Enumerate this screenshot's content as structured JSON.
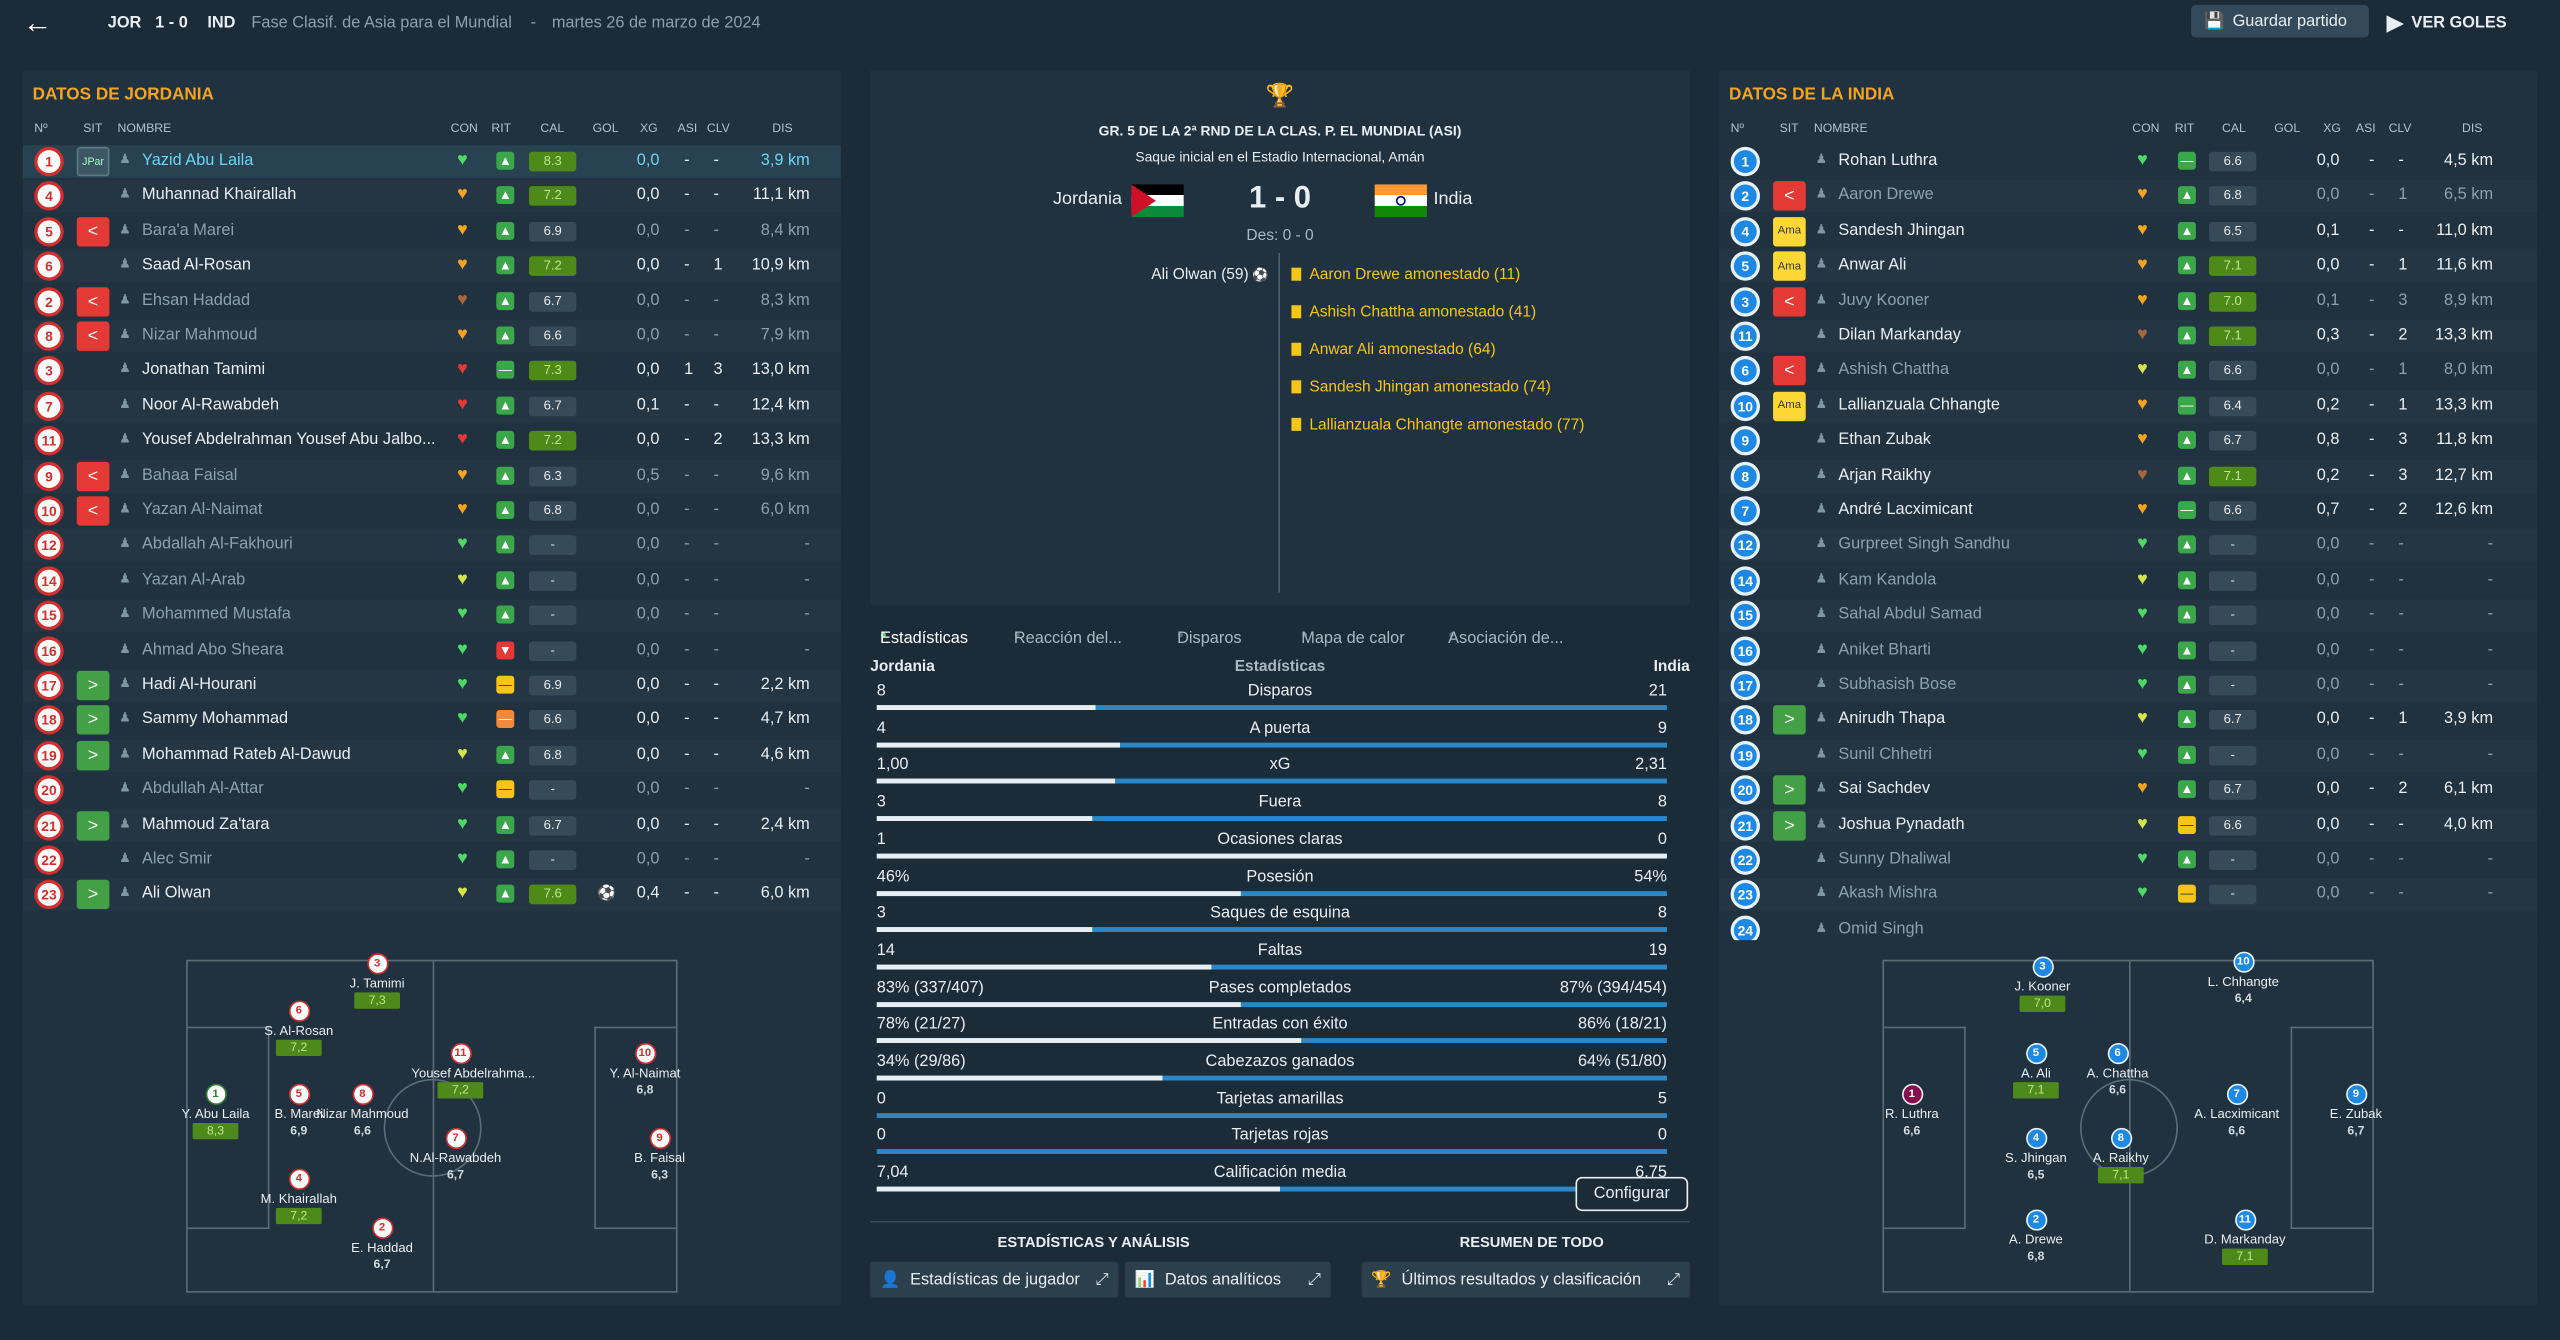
{
  "topbar": {
    "home_abbr": "JOR",
    "score": "1 - 0",
    "away_abbr": "IND",
    "competition": "Fase Clasif. de Asia para el Mundial",
    "separator": "-",
    "date": "martes 26 de marzo de 2024",
    "save_label": "Guardar partido",
    "goals_label": "VER GOLES"
  },
  "headers": {
    "no": "Nº",
    "sit": "SIT",
    "name": "NOMBRE",
    "con": "CON",
    "rit": "RIT",
    "cal": "CAL",
    "gol": "GOL",
    "xg": "XG",
    "asi": "ASI",
    "clv": "CLV",
    "dis": "DIS"
  },
  "home": {
    "title": "DATOS DE JORDANIA",
    "players": [
      {
        "num": "1",
        "sit": "JPar",
        "name": "Yazid Abu Laila",
        "cal": "8.3",
        "calg": true,
        "gol": "",
        "xg": "0,0",
        "asi": "-",
        "clv": "-",
        "dis": "3,9 km",
        "hl": true,
        "heart": "g",
        "rit": "up"
      },
      {
        "num": "4",
        "sit": "",
        "name": "Muhannad Khairallah",
        "cal": "7.2",
        "calg": true,
        "gol": "",
        "xg": "0,0",
        "asi": "-",
        "clv": "-",
        "dis": "11,1 km",
        "heart": "o",
        "rit": "up"
      },
      {
        "num": "5",
        "sit": "out",
        "name": "Bara'a Marei",
        "cal": "6.9",
        "calg": false,
        "gol": "",
        "xg": "0,0",
        "asi": "-",
        "clv": "-",
        "dis": "8,4 km",
        "dim": true,
        "heart": "o",
        "rit": "up"
      },
      {
        "num": "6",
        "sit": "",
        "name": "Saad Al-Rosan",
        "cal": "7.2",
        "calg": true,
        "gol": "",
        "xg": "0,0",
        "asi": "-",
        "clv": "1",
        "dis": "10,9 km",
        "heart": "o",
        "rit": "up"
      },
      {
        "num": "2",
        "sit": "out",
        "name": "Ehsan Haddad",
        "cal": "6.7",
        "calg": false,
        "gol": "",
        "xg": "0,0",
        "asi": "-",
        "clv": "-",
        "dis": "8,3 km",
        "dim": true,
        "heart": "b",
        "rit": "up"
      },
      {
        "num": "8",
        "sit": "out",
        "name": "Nizar Mahmoud",
        "cal": "6.6",
        "calg": false,
        "gol": "",
        "xg": "0,0",
        "asi": "-",
        "clv": "-",
        "dis": "7,9 km",
        "dim": true,
        "heart": "o",
        "rit": "up"
      },
      {
        "num": "3",
        "sit": "",
        "name": "Jonathan Tamimi",
        "cal": "7.3",
        "calg": true,
        "gol": "",
        "xg": "0,0",
        "asi": "1",
        "clv": "3",
        "dis": "13,0 km",
        "heart": "r",
        "rit": "eq"
      },
      {
        "num": "7",
        "sit": "",
        "name": "Noor Al-Rawabdeh",
        "cal": "6.7",
        "calg": false,
        "gol": "",
        "xg": "0,1",
        "asi": "-",
        "clv": "-",
        "dis": "12,4 km",
        "heart": "r",
        "rit": "up"
      },
      {
        "num": "11",
        "sit": "",
        "name": "Yousef Abdelrahman Yousef Abu Jalbo...",
        "cal": "7.2",
        "calg": true,
        "gol": "",
        "xg": "0,0",
        "asi": "-",
        "clv": "2",
        "dis": "13,3 km",
        "heart": "r",
        "rit": "up"
      },
      {
        "num": "9",
        "sit": "out",
        "name": "Bahaa Faisal",
        "cal": "6.3",
        "calg": false,
        "gol": "",
        "xg": "0,5",
        "asi": "-",
        "clv": "-",
        "dis": "9,6 km",
        "dim": true,
        "heart": "o",
        "rit": "up"
      },
      {
        "num": "10",
        "sit": "out",
        "name": "Yazan Al-Naimat",
        "cal": "6.8",
        "calg": false,
        "gol": "",
        "xg": "0,0",
        "asi": "-",
        "clv": "-",
        "dis": "6,0 km",
        "dim": true,
        "heart": "o",
        "rit": "up"
      },
      {
        "num": "12",
        "sit": "",
        "name": "Abdallah Al-Fakhouri",
        "cal": "-",
        "calg": false,
        "gol": "",
        "xg": "0,0",
        "asi": "-",
        "clv": "-",
        "dis": "-",
        "dim": true,
        "heart": "g",
        "rit": "up"
      },
      {
        "num": "14",
        "sit": "",
        "name": "Yazan Al-Arab",
        "cal": "-",
        "calg": false,
        "gol": "",
        "xg": "0,0",
        "asi": "-",
        "clv": "-",
        "dis": "-",
        "dim": true,
        "heart": "y",
        "rit": "up"
      },
      {
        "num": "15",
        "sit": "",
        "name": "Mohammed Mustafa",
        "cal": "-",
        "calg": false,
        "gol": "",
        "xg": "0,0",
        "asi": "-",
        "clv": "-",
        "dis": "-",
        "dim": true,
        "heart": "g",
        "rit": "up"
      },
      {
        "num": "16",
        "sit": "",
        "name": "Ahmad Abo Sheara",
        "cal": "-",
        "calg": false,
        "gol": "",
        "xg": "0,0",
        "asi": "-",
        "clv": "-",
        "dis": "-",
        "dim": true,
        "heart": "g",
        "rit": "down"
      },
      {
        "num": "17",
        "sit": "in",
        "name": "Hadi Al-Hourani",
        "cal": "6.9",
        "calg": false,
        "gol": "",
        "xg": "0,0",
        "asi": "-",
        "clv": "-",
        "dis": "2,2 km",
        "heart": "g",
        "rit": "eqy"
      },
      {
        "num": "18",
        "sit": "in",
        "name": "Sammy Mohammad",
        "cal": "6.6",
        "calg": false,
        "gol": "",
        "xg": "0,0",
        "asi": "-",
        "clv": "-",
        "dis": "4,7 km",
        "heart": "g",
        "rit": "eqo"
      },
      {
        "num": "19",
        "sit": "in",
        "name": "Mohammad Rateb Al-Dawud",
        "cal": "6.8",
        "calg": false,
        "gol": "",
        "xg": "0,0",
        "asi": "-",
        "clv": "-",
        "dis": "4,6 km",
        "heart": "y",
        "rit": "up"
      },
      {
        "num": "20",
        "sit": "",
        "name": "Abdullah Al-Attar",
        "cal": "-",
        "calg": false,
        "gol": "",
        "xg": "0,0",
        "asi": "-",
        "clv": "-",
        "dis": "-",
        "dim": true,
        "heart": "g",
        "rit": "eqy"
      },
      {
        "num": "21",
        "sit": "in",
        "name": "Mahmoud Za'tara",
        "cal": "6.7",
        "calg": false,
        "gol": "",
        "xg": "0,0",
        "asi": "-",
        "clv": "-",
        "dis": "2,4 km",
        "heart": "g",
        "rit": "up"
      },
      {
        "num": "22",
        "sit": "",
        "name": "Alec Smir",
        "cal": "-",
        "calg": false,
        "gol": "",
        "xg": "0,0",
        "asi": "-",
        "clv": "-",
        "dis": "-",
        "dim": true,
        "heart": "g",
        "rit": "up"
      },
      {
        "num": "23",
        "sit": "in",
        "name": "Ali Olwan",
        "cal": "7.6",
        "calg": true,
        "gol": "⚽",
        "xg": "0,4",
        "asi": "-",
        "clv": "-",
        "dis": "6,0 km",
        "heart": "y",
        "rit": "up"
      }
    ]
  },
  "away": {
    "title": "DATOS DE LA INDIA",
    "players": [
      {
        "num": "1",
        "sit": "",
        "name": "Rohan Luthra",
        "cal": "6.6",
        "calg": false,
        "xg": "0,0",
        "asi": "-",
        "clv": "-",
        "dis": "4,5 km",
        "heart": "g",
        "rit": "eq"
      },
      {
        "num": "2",
        "sit": "out",
        "name": "Aaron Drewe",
        "cal": "6.8",
        "calg": false,
        "xg": "0,0",
        "asi": "-",
        "clv": "1",
        "dis": "6,5 km",
        "dim": true,
        "heart": "o",
        "rit": "up"
      },
      {
        "num": "4",
        "sit": "Ama",
        "name": "Sandesh Jhingan",
        "cal": "6.5",
        "calg": false,
        "xg": "0,1",
        "asi": "-",
        "clv": "-",
        "dis": "11,0 km",
        "heart": "o",
        "rit": "up"
      },
      {
        "num": "5",
        "sit": "Ama",
        "name": "Anwar Ali",
        "cal": "7.1",
        "calg": true,
        "xg": "0,0",
        "asi": "-",
        "clv": "1",
        "dis": "11,6 km",
        "heart": "o",
        "rit": "up"
      },
      {
        "num": "3",
        "sit": "out",
        "name": "Juvy Kooner",
        "cal": "7.0",
        "calg": true,
        "xg": "0,1",
        "asi": "-",
        "clv": "3",
        "dis": "8,9 km",
        "dim": true,
        "heart": "o",
        "rit": "up"
      },
      {
        "num": "11",
        "sit": "",
        "name": "Dilan Markanday",
        "cal": "7.1",
        "calg": true,
        "xg": "0,3",
        "asi": "-",
        "clv": "2",
        "dis": "13,3 km",
        "heart": "b",
        "rit": "up"
      },
      {
        "num": "6",
        "sit": "out",
        "name": "Ashish Chattha",
        "cal": "6.6",
        "calg": false,
        "xg": "0,0",
        "asi": "-",
        "clv": "1",
        "dis": "8,0 km",
        "dim": true,
        "heart": "y",
        "rit": "up"
      },
      {
        "num": "10",
        "sit": "Ama",
        "name": "Lallianzuala Chhangte",
        "cal": "6.4",
        "calg": false,
        "xg": "0,2",
        "asi": "-",
        "clv": "1",
        "dis": "13,3 km",
        "heart": "o",
        "rit": "eq"
      },
      {
        "num": "9",
        "sit": "",
        "name": "Ethan Zubak",
        "cal": "6.7",
        "calg": false,
        "xg": "0,8",
        "asi": "-",
        "clv": "3",
        "dis": "11,8 km",
        "heart": "o",
        "rit": "up"
      },
      {
        "num": "8",
        "sit": "",
        "name": "Arjan Raikhy",
        "cal": "7.1",
        "calg": true,
        "xg": "0,2",
        "asi": "-",
        "clv": "3",
        "dis": "12,7 km",
        "heart": "b",
        "rit": "up"
      },
      {
        "num": "7",
        "sit": "",
        "name": "André Lacximicant",
        "cal": "6.6",
        "calg": false,
        "xg": "0,7",
        "asi": "-",
        "clv": "2",
        "dis": "12,6 km",
        "heart": "o",
        "rit": "eq"
      },
      {
        "num": "12",
        "sit": "",
        "name": "Gurpreet Singh Sandhu",
        "cal": "-",
        "calg": false,
        "xg": "0,0",
        "asi": "-",
        "clv": "-",
        "dis": "-",
        "dim": true,
        "heart": "g",
        "rit": "up"
      },
      {
        "num": "14",
        "sit": "",
        "name": "Kam Kandola",
        "cal": "-",
        "calg": false,
        "xg": "0,0",
        "asi": "-",
        "clv": "-",
        "dis": "-",
        "dim": true,
        "heart": "y",
        "rit": "up"
      },
      {
        "num": "15",
        "sit": "",
        "name": "Sahal Abdul Samad",
        "cal": "-",
        "calg": false,
        "xg": "0,0",
        "asi": "-",
        "clv": "-",
        "dis": "-",
        "dim": true,
        "heart": "g",
        "rit": "up"
      },
      {
        "num": "16",
        "sit": "",
        "name": "Aniket Bharti",
        "cal": "-",
        "calg": false,
        "xg": "0,0",
        "asi": "-",
        "clv": "-",
        "dis": "-",
        "dim": true,
        "heart": "g",
        "rit": "up"
      },
      {
        "num": "17",
        "sit": "",
        "name": "Subhasish Bose",
        "cal": "-",
        "calg": false,
        "xg": "0,0",
        "asi": "-",
        "clv": "-",
        "dis": "-",
        "dim": true,
        "heart": "g",
        "rit": "up"
      },
      {
        "num": "18",
        "sit": "in",
        "name": "Anirudh Thapa",
        "cal": "6.7",
        "calg": false,
        "xg": "0,0",
        "asi": "-",
        "clv": "1",
        "dis": "3,9 km",
        "heart": "y",
        "rit": "up"
      },
      {
        "num": "19",
        "sit": "",
        "name": "Sunil Chhetri",
        "cal": "-",
        "calg": false,
        "xg": "0,0",
        "asi": "-",
        "clv": "-",
        "dis": "-",
        "dim": true,
        "heart": "g",
        "rit": "up"
      },
      {
        "num": "20",
        "sit": "in",
        "name": "Sai Sachdev",
        "cal": "6.7",
        "calg": false,
        "xg": "0,0",
        "asi": "-",
        "clv": "2",
        "dis": "6,1 km",
        "heart": "o",
        "rit": "up"
      },
      {
        "num": "21",
        "sit": "in",
        "name": "Joshua Pynadath",
        "cal": "6.6",
        "calg": false,
        "xg": "0,0",
        "asi": "-",
        "clv": "-",
        "dis": "4,0 km",
        "heart": "y",
        "rit": "eqy"
      },
      {
        "num": "22",
        "sit": "",
        "name": "Sunny Dhaliwal",
        "cal": "-",
        "calg": false,
        "xg": "0,0",
        "asi": "-",
        "clv": "-",
        "dis": "-",
        "dim": true,
        "heart": "g",
        "rit": "up"
      },
      {
        "num": "23",
        "sit": "",
        "name": "Akash Mishra",
        "cal": "-",
        "calg": false,
        "xg": "0,0",
        "asi": "-",
        "clv": "-",
        "dis": "-",
        "dim": true,
        "heart": "g",
        "rit": "eqy"
      },
      {
        "num": "24",
        "sit": "",
        "name": "Omid Singh",
        "cal": "",
        "calg": false,
        "xg": "",
        "asi": "",
        "clv": "",
        "dis": "",
        "dim": true,
        "heart": "",
        "rit": ""
      }
    ]
  },
  "match": {
    "competition": "GR. 5 DE LA 2ª RND DE LA CLAS. P. EL MUNDIAL (ASI)",
    "kickoff": "Saque inicial en el Estadio Internacional, Amán",
    "home": "Jordania",
    "away": "India",
    "score": "1 - 0",
    "halftime": "Des: 0 - 0",
    "home_events": [
      "Ali Olwan (59)"
    ],
    "away_events": [
      "Aaron Drewe amonestado (11)",
      "Ashish Chattha amonestado (41)",
      "Anwar Ali amonestado (64)",
      "Sandesh Jhingan amonestado (74)",
      "Lallianzuala Chhangte amonestado (77)"
    ]
  },
  "tabs": [
    "Estadísticas",
    "Reacción del...",
    "Disparos",
    "Mapa de calor",
    "Asociación de..."
  ],
  "stats": {
    "home_label": "Jordania",
    "title": "Estadísticas",
    "away_label": "India",
    "rows": [
      {
        "label": "Disparos",
        "home": "8",
        "away": "21",
        "share": 0.276
      },
      {
        "label": "A puerta",
        "home": "4",
        "away": "9",
        "share": 0.308
      },
      {
        "label": "xG",
        "home": "1,00",
        "away": "2,31",
        "share": 0.302
      },
      {
        "label": "Fuera",
        "home": "3",
        "away": "8",
        "share": 0.273
      },
      {
        "label": "Ocasiones claras",
        "home": "1",
        "away": "0",
        "share": 1.0
      },
      {
        "label": "Posesión",
        "home": "46%",
        "away": "54%",
        "share": 0.46
      },
      {
        "label": "Saques de esquina",
        "home": "3",
        "away": "8",
        "share": 0.273
      },
      {
        "label": "Faltas",
        "home": "14",
        "away": "19",
        "share": 0.424
      },
      {
        "label": "Pases completados",
        "home": "83% (337/407)",
        "away": "87% (394/454)",
        "share": 0.461
      },
      {
        "label": "Entradas con éxito",
        "home": "78% (21/27)",
        "away": "86% (18/21)",
        "share": 0.538
      },
      {
        "label": "Cabezazos ganados",
        "home": "34% (29/86)",
        "away": "64% (51/80)",
        "share": 0.362
      },
      {
        "label": "Tarjetas amarillas",
        "home": "0",
        "away": "5",
        "share": 0.0
      },
      {
        "label": "Tarjetas rojas",
        "home": "0",
        "away": "0",
        "share": 0.0
      },
      {
        "label": "Calificación media",
        "home": "7,04",
        "away": "6,75",
        "share": 0.51
      }
    ]
  },
  "configure": "Configurar",
  "analysis": {
    "title": "ESTADÍSTICAS Y ANÁLISIS",
    "player_stats": "Estadísticas de jugador",
    "analytics": "Datos analíticos"
  },
  "summary": {
    "title": "RESUMEN DE TODO",
    "results": "Últimos resultados y clasificación"
  },
  "home_formation": [
    {
      "num": "1",
      "name": "Y. Abu Laila",
      "rating": "8,3",
      "hl": true,
      "c": "g"
    },
    {
      "num": "4",
      "name": "M. Khairallah",
      "rating": "7,2",
      "hl": true,
      "c": "r"
    },
    {
      "num": "5",
      "name": "B. Marei",
      "rating": "6,9",
      "c": "r"
    },
    {
      "num": "8",
      "name": "Nizar Mahmoud",
      "rating": "6,6",
      "c": "r"
    },
    {
      "num": "6",
      "name": "S. Al-Rosan",
      "rating": "7,2",
      "hl": true,
      "c": "r"
    },
    {
      "num": "2",
      "name": "E. Haddad",
      "rating": "6,7",
      "c": "r"
    },
    {
      "num": "3",
      "name": "J. Tamimi",
      "rating": "7,3",
      "hl": true,
      "c": "r"
    },
    {
      "num": "11",
      "name": "Yousef Abdelrahma...",
      "rating": "7,2",
      "hl": true,
      "c": "r"
    },
    {
      "num": "7",
      "name": "N.Al-Rawabdeh",
      "rating": "6,7",
      "c": "r"
    },
    {
      "num": "10",
      "name": "Y. Al-Naimat",
      "rating": "6,8",
      "c": "r"
    },
    {
      "num": "9",
      "name": "B. Faisal",
      "rating": "6,3",
      "c": "r"
    }
  ],
  "away_formation": [
    {
      "num": "1",
      "name": "R. Luthra",
      "rating": "6,6",
      "c": "m"
    },
    {
      "num": "3",
      "name": "J. Kooner",
      "rating": "7,0",
      "hl": true,
      "c": "b"
    },
    {
      "num": "5",
      "name": "A. Ali",
      "rating": "7,1",
      "hl": true,
      "c": "b"
    },
    {
      "num": "4",
      "name": "S. Jhingan",
      "rating": "6,5",
      "c": "b"
    },
    {
      "num": "2",
      "name": "A. Drewe",
      "rating": "6,8",
      "c": "b"
    },
    {
      "num": "6",
      "name": "A. Chattha",
      "rating": "6,6",
      "c": "b"
    },
    {
      "num": "8",
      "name": "A. Raikhy",
      "rating": "7,1",
      "hl": true,
      "c": "b"
    },
    {
      "num": "10",
      "name": "L. Chhangte",
      "rating": "6,4",
      "c": "b"
    },
    {
      "num": "7",
      "name": "A. Lacximicant",
      "rating": "6,6",
      "c": "b"
    },
    {
      "num": "11",
      "name": "D. Markanday",
      "rating": "7,1",
      "hl": true,
      "c": "b"
    },
    {
      "num": "9",
      "name": "E. Zubak",
      "rating": "6,7",
      "c": "b"
    }
  ]
}
